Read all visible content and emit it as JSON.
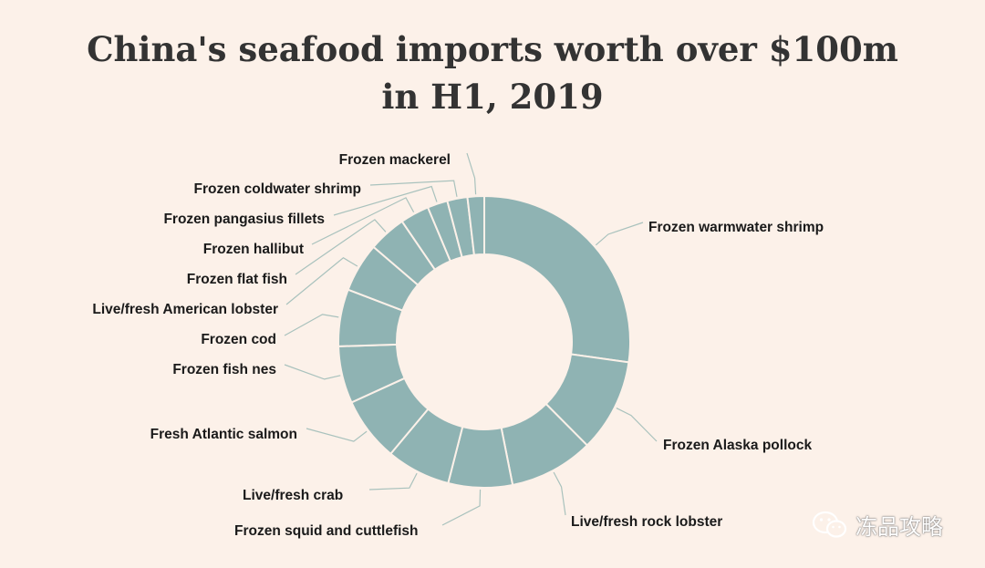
{
  "chart_data": {
    "type": "pie",
    "title": "China's seafood imports worth over $100m in H1, 2019",
    "slice_color": "#8fb3b3",
    "categories": [
      "Frozen warmwater shrimp",
      "Frozen Alaska pollock",
      "Live/fresh rock lobster",
      "Frozen squid and cuttlefish",
      "Live/fresh crab",
      "Fresh Atlantic salmon",
      "Frozen fish nes",
      "Frozen cod",
      "Live/fresh American lobster",
      "Frozen flat fish",
      "Frozen hallibut",
      "Frozen pangasius fillets",
      "Frozen coldwater shrimp",
      "Frozen mackerel"
    ],
    "values": [
      28.0,
      10.6,
      9.6,
      7.3,
      7.3,
      7.3,
      6.5,
      6.5,
      5.6,
      4.3,
      3.3,
      2.3,
      2.3,
      1.9
    ]
  },
  "watermark": {
    "text": "冻品攻略",
    "icon": "wechat-icon"
  }
}
